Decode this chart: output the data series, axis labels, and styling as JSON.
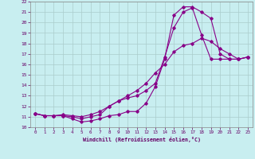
{
  "title": "",
  "xlabel": "Windchill (Refroidissement éolien,°C)",
  "ylabel": "",
  "xlim": [
    -0.5,
    23.5
  ],
  "ylim": [
    10,
    22
  ],
  "yticks": [
    10,
    11,
    12,
    13,
    14,
    15,
    16,
    17,
    18,
    19,
    20,
    21,
    22
  ],
  "xticks": [
    0,
    1,
    2,
    3,
    4,
    5,
    6,
    7,
    8,
    9,
    10,
    11,
    12,
    13,
    14,
    15,
    16,
    17,
    18,
    19,
    20,
    21,
    22,
    23
  ],
  "background_color": "#c8eef0",
  "line_color": "#880088",
  "grid_color": "#aacccc",
  "line1_x": [
    0,
    1,
    2,
    3,
    4,
    5,
    6,
    7,
    8,
    9,
    10,
    11,
    12,
    13,
    14,
    15,
    16,
    17,
    18,
    19,
    20,
    21,
    22,
    23
  ],
  "line1_y": [
    11.3,
    11.1,
    11.1,
    11.1,
    10.8,
    10.5,
    10.6,
    10.8,
    11.1,
    11.2,
    11.5,
    11.5,
    12.3,
    13.9,
    16.5,
    20.7,
    21.5,
    21.5,
    21.0,
    20.4,
    17.0,
    16.5,
    16.5,
    16.7
  ],
  "line2_x": [
    0,
    1,
    2,
    3,
    4,
    5,
    6,
    7,
    8,
    9,
    10,
    11,
    12,
    13,
    14,
    15,
    16,
    17,
    18,
    19,
    20,
    21,
    22,
    23
  ],
  "line2_y": [
    11.3,
    11.1,
    11.1,
    11.1,
    11.0,
    10.8,
    11.0,
    11.2,
    12.0,
    12.5,
    12.8,
    13.0,
    13.5,
    14.2,
    16.7,
    19.5,
    21.0,
    21.4,
    18.8,
    16.5,
    16.5,
    16.5,
    16.5,
    16.7
  ],
  "line3_x": [
    0,
    1,
    2,
    3,
    4,
    5,
    6,
    7,
    8,
    9,
    10,
    11,
    12,
    13,
    14,
    15,
    16,
    17,
    18,
    19,
    20,
    21,
    22,
    23
  ],
  "line3_y": [
    11.3,
    11.1,
    11.1,
    11.2,
    11.1,
    11.0,
    11.2,
    11.5,
    12.0,
    12.5,
    13.0,
    13.5,
    14.2,
    15.2,
    16.0,
    17.2,
    17.8,
    18.0,
    18.5,
    18.2,
    17.5,
    17.0,
    16.5,
    16.7
  ]
}
